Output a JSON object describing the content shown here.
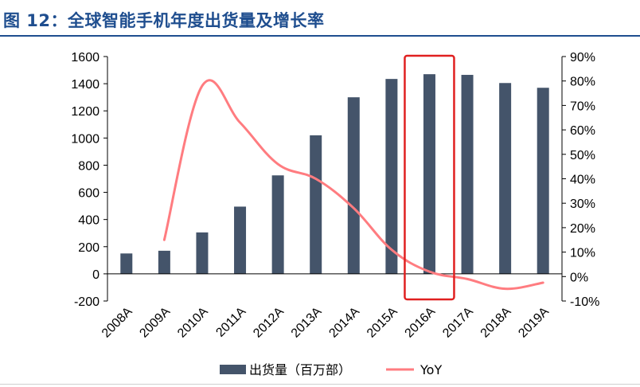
{
  "header": {
    "title": "图 12：全球智能手机年度出货量及增长率"
  },
  "chart_data": {
    "type": "bar",
    "categories": [
      "2008A",
      "2009A",
      "2010A",
      "2011A",
      "2012A",
      "2013A",
      "2014A",
      "2015A",
      "2016A",
      "2017A",
      "2018A",
      "2019A"
    ],
    "series": [
      {
        "name": "出货量（百万部）",
        "type": "bar",
        "axis": "left",
        "values": [
          150,
          170,
          305,
          495,
          725,
          1020,
          1300,
          1435,
          1470,
          1465,
          1405,
          1370
        ]
      },
      {
        "name": "YoY",
        "type": "line",
        "axis": "right",
        "unit": "%",
        "values": [
          null,
          15,
          78,
          63,
          46,
          40,
          28,
          11,
          2,
          -1,
          -5,
          -2.5
        ]
      }
    ],
    "y_left": {
      "min": -200,
      "max": 1600,
      "ticks": [
        "-200",
        "0",
        "200",
        "400",
        "600",
        "800",
        "1000",
        "1200",
        "1400",
        "1600"
      ]
    },
    "y_right": {
      "min": -10,
      "max": 90,
      "ticks": [
        "-10%",
        "0%",
        "10%",
        "20%",
        "30%",
        "40%",
        "50%",
        "60%",
        "70%",
        "80%",
        "90%"
      ]
    },
    "highlight_category": "2016A",
    "colors": {
      "bar": "#44546a",
      "line": "#ff7c80",
      "highlight": "#e02020",
      "title": "#1f4e8f"
    },
    "legend_position": "bottom-center",
    "grid": false
  }
}
